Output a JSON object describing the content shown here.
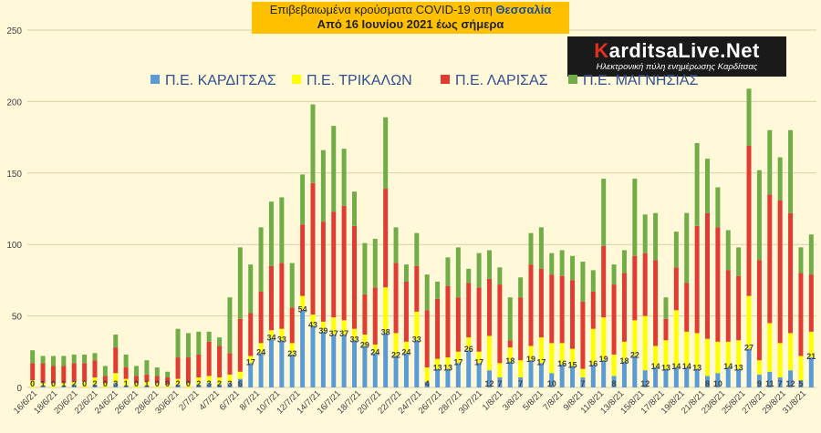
{
  "title": {
    "line1_prefix": "Επιβεβαιωμένα κρούσματα COVID-19 στη ",
    "line1_region": "Θεσσαλία",
    "line2": "Από 16 Ιουνίου 2021 έως σήμερα"
  },
  "logo": {
    "name": "KarditsaLive.Net",
    "tagline": "Ηλεκτρονική πύλη ενημέρωσης Καρδίτσας"
  },
  "colors": {
    "karditsa": "#5b9bd5",
    "trikala": "#ffff00",
    "larisa": "#e03c31",
    "magnisia": "#70ad47",
    "background": "#fff9d9",
    "grid": "#d9d0a8",
    "label": "#404040"
  },
  "chart_data": {
    "type": "bar",
    "stacked": true,
    "ylim": [
      0,
      250
    ],
    "yticks": [
      0,
      50,
      100,
      150,
      200,
      250
    ],
    "grid": "horizontal",
    "legend_position": "top",
    "x_tick_labels": [
      "16/6/21",
      "18/6/21",
      "20/6/21",
      "22/6/21",
      "24/6/21",
      "26/6/21",
      "28/6/21",
      "30/6/21",
      "2/7/21",
      "4/7/21",
      "6/7/21",
      "8/7/21",
      "10/7/21",
      "12/7/21",
      "14/7/21",
      "16/7/21",
      "18/7/21",
      "20/7/21",
      "22/7/21",
      "24/7/21",
      "26/7/21",
      "28/7/21",
      "30/7/21",
      "1/8/21",
      "3/8/21",
      "5/8/21",
      "7/8/21",
      "9/8/21",
      "11/8/21",
      "13/8/21",
      "15/8/21",
      "17/8/21",
      "19/8/21",
      "21/8/21",
      "23/8/21",
      "25/8/21",
      "27/8/21",
      "29/8/21",
      "31/8/21"
    ],
    "series": [
      {
        "name": "Π.Ε. ΚΑΡΔΙΤΣΑΣ",
        "values": [
          0,
          1,
          0,
          1,
          2,
          0,
          2,
          0,
          3,
          1,
          0,
          1,
          0,
          0,
          2,
          0,
          2,
          3,
          2,
          3,
          6,
          17,
          24,
          34,
          33,
          23,
          54,
          43,
          39,
          37,
          37,
          33,
          29,
          24,
          38,
          22,
          24,
          33,
          4,
          13,
          13,
          17,
          26,
          17,
          12,
          7,
          18,
          7,
          19,
          17,
          10,
          16,
          15,
          7,
          16,
          19,
          8,
          18,
          22,
          12,
          14,
          13,
          14,
          14,
          13,
          8,
          10,
          14,
          13,
          27,
          9,
          11,
          7,
          12,
          5,
          21
        ]
      },
      {
        "name": "Π.Ε. ΤΡΙΚΑΛΩΝ",
        "values": [
          5,
          2,
          3,
          2,
          2,
          4,
          5,
          3,
          7,
          5,
          3,
          3,
          3,
          2,
          4,
          3,
          5,
          5,
          5,
          6,
          5,
          5,
          7,
          6,
          8,
          8,
          10,
          8,
          7,
          12,
          10,
          8,
          8,
          6,
          32,
          16,
          8,
          20,
          10,
          7,
          8,
          8,
          9,
          8,
          24,
          10,
          10,
          12,
          10,
          18,
          21,
          15,
          12,
          6,
          25,
          30,
          15,
          14,
          25,
          38,
          15,
          20,
          40,
          25,
          25,
          26,
          22,
          18,
          20,
          37,
          10,
          34,
          24,
          26,
          17,
          18
        ]
      },
      {
        "name": "Π.Ε. ΛΑΡΙΣΑΣ",
        "values": [
          12,
          14,
          12,
          12,
          13,
          13,
          12,
          5,
          18,
          8,
          5,
          5,
          5,
          5,
          15,
          18,
          16,
          24,
          22,
          15,
          37,
          30,
          36,
          45,
          46,
          25,
          50,
          92,
          70,
          74,
          80,
          72,
          28,
          40,
          69,
          49,
          42,
          32,
          40,
          42,
          50,
          38,
          38,
          45,
          40,
          55,
          5,
          44,
          57,
          48,
          48,
          47,
          48,
          47,
          26,
          50,
          49,
          48,
          45,
          44,
          60,
          15,
          30,
          34,
          75,
          88,
          80,
          50,
          45,
          105,
          70,
          90,
          100,
          84,
          58,
          40
        ]
      },
      {
        "name": "Π.Ε. ΜΑΓΝΗΣΙΑΣ",
        "values": [
          9,
          5,
          7,
          7,
          6,
          6,
          5,
          7,
          9,
          9,
          7,
          10,
          6,
          4,
          20,
          17,
          16,
          7,
          6,
          39,
          50,
          34,
          45,
          45,
          46,
          31,
          35,
          55,
          50,
          60,
          40,
          24,
          36,
          34,
          50,
          25,
          12,
          23,
          25,
          12,
          20,
          35,
          10,
          24,
          20,
          12,
          30,
          14,
          22,
          29,
          15,
          18,
          17,
          28,
          15,
          47,
          14,
          16,
          54,
          27,
          33,
          15,
          25,
          49,
          58,
          38,
          28,
          28,
          20,
          40,
          63,
          45,
          30,
          58,
          18,
          28
        ]
      }
    ],
    "label_series": "Π.Ε. ΚΑΡΔΙΤΣΑΣ"
  }
}
